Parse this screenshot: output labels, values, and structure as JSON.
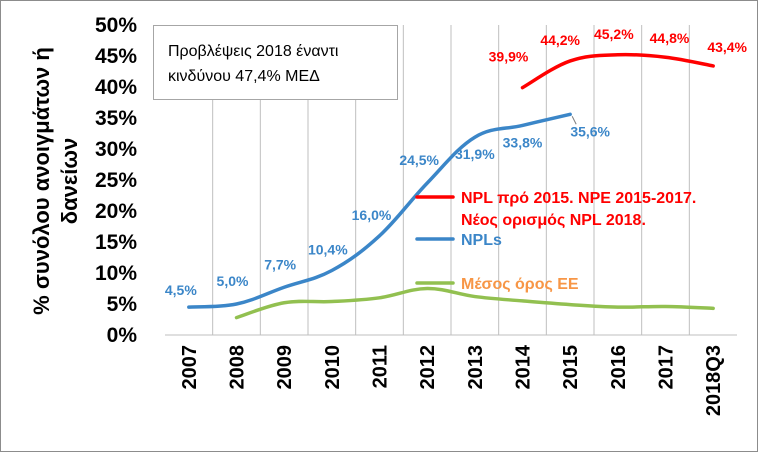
{
  "chart_data": {
    "type": "line",
    "title": "",
    "ylabel": "% συνόλου ανοιγμάτων ή δανείων",
    "xlabel": "",
    "categories": [
      "2007",
      "2008",
      "2009",
      "2010",
      "2011",
      "2012",
      "2013",
      "2014",
      "2015",
      "2016",
      "2017",
      "2018Q3"
    ],
    "y_ticks": [
      "0%",
      "5%",
      "10%",
      "15%",
      "20%",
      "25%",
      "30%",
      "35%",
      "40%",
      "45%",
      "50%"
    ],
    "ylim": [
      0,
      50
    ],
    "grid": "vertical",
    "legend_position": "right",
    "annotation": "Προβλέψεις 2018 έναντι κινδύνου 47,4% ΜΕΔ",
    "series": [
      {
        "name": "NPL πρό 2015. NPE 2015-2017. Νέος ορισμός NPL 2018.",
        "legend_lines": [
          "NPL πρό 2015. NPE 2015-2017.",
          "Νέος ορισμός NPL 2018."
        ],
        "color": "#ff0000",
        "values": [
          null,
          null,
          null,
          null,
          null,
          null,
          null,
          39.9,
          44.2,
          45.2,
          44.8,
          43.4
        ],
        "labels": [
          null,
          null,
          null,
          null,
          null,
          null,
          null,
          "39,9%",
          "44,2%",
          "45,2%",
          "44,8%",
          "43,4%"
        ]
      },
      {
        "name": "NPLs",
        "legend_lines": [
          "NPLs"
        ],
        "color": "#3b86c8",
        "values": [
          4.5,
          5.0,
          7.7,
          10.4,
          16.0,
          24.5,
          31.9,
          33.8,
          35.6,
          null,
          null,
          null
        ],
        "labels": [
          "4,5%",
          "5,0%",
          "7,7%",
          "10,4%",
          "16,0%",
          "24,5%",
          "31,9%",
          "33,8%",
          "35,6%",
          null,
          null,
          null
        ]
      },
      {
        "name": "Μέσος όρος ΕΕ",
        "legend_lines": [
          "Μέσος όρος ΕΕ"
        ],
        "color": "#92c050",
        "legend_text_color": "#f79646",
        "values": [
          null,
          2.8,
          5.2,
          5.4,
          6.0,
          7.5,
          6.2,
          5.5,
          4.9,
          4.5,
          4.6,
          4.3
        ],
        "labels": [
          null,
          null,
          null,
          null,
          null,
          null,
          null,
          null,
          null,
          null,
          null,
          null
        ]
      }
    ]
  }
}
